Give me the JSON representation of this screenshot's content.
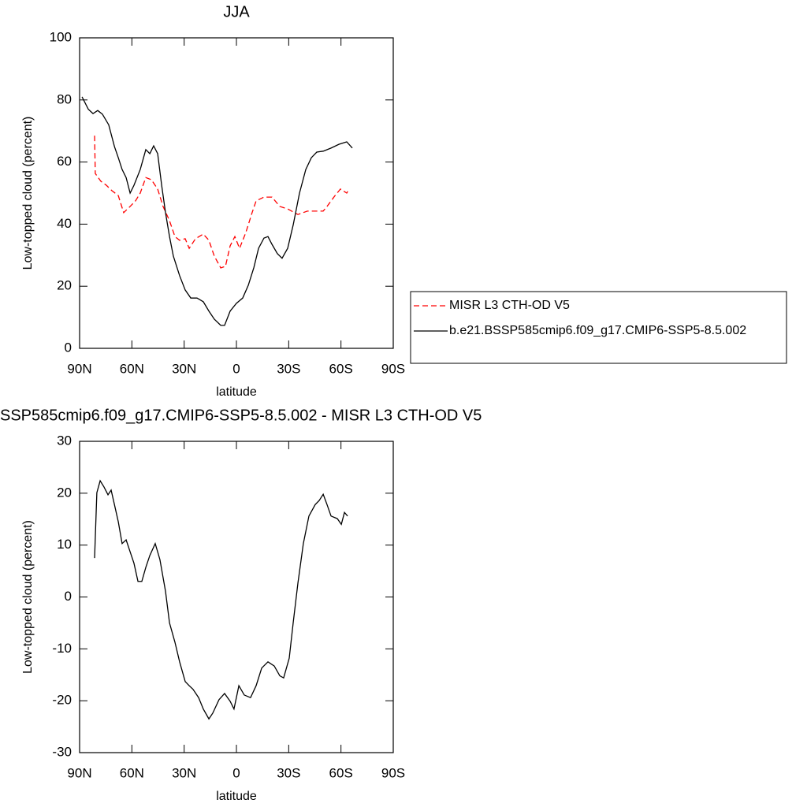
{
  "chart_data": [
    {
      "type": "line",
      "title": "JJA",
      "xlabel": "latitude",
      "ylabel": "Low-topped cloud (percent)",
      "xlim": [
        90,
        -90
      ],
      "xticks": [
        {
          "value": 90,
          "label": "90N"
        },
        {
          "value": 60,
          "label": "60N"
        },
        {
          "value": 30,
          "label": "30N"
        },
        0,
        {
          "value": -30,
          "label": "30S"
        },
        {
          "value": -60,
          "label": "60S"
        },
        {
          "value": -90,
          "label": "90S"
        }
      ],
      "ylim": [
        0,
        100
      ],
      "yticks": [
        0,
        20,
        40,
        60,
        80,
        100
      ],
      "legend": "right",
      "series": [
        {
          "name": "MISR L3 CTH-OD V5",
          "color": "#ff0000",
          "dash": true,
          "x": [
            81.4,
            81,
            77.8,
            74.6,
            71.5,
            67.8,
            64.7,
            61,
            57.9,
            55.2,
            52,
            48.8,
            45.2,
            42.1,
            38.4,
            35.3,
            32.6,
            29.4,
            27.1,
            23.5,
            19,
            15.8,
            12.7,
            9,
            6.3,
            3.6,
            0.9,
            -1.8,
            -5.4,
            -9,
            -11.3,
            -15.8,
            -20.4,
            -24.9,
            -29.4,
            -35.3,
            -40.7,
            -45.2,
            -49.8,
            -52,
            -56.6,
            -59.7,
            -63.3,
            -64.7
          ],
          "values": [
            68.5,
            56.3,
            53.8,
            52.5,
            50.8,
            49.2,
            43.7,
            45.7,
            47.5,
            50,
            55,
            54.3,
            51.3,
            45.7,
            41.1,
            36,
            34.8,
            35.3,
            32.2,
            35.3,
            36.8,
            34.8,
            29.7,
            25.9,
            26.4,
            33,
            36,
            32.2,
            37.3,
            43.7,
            47.5,
            48.7,
            48.7,
            45.7,
            44.9,
            43.1,
            44.2,
            44.2,
            44.2,
            45.7,
            49.2,
            51.3,
            50,
            51.3
          ]
        },
        {
          "name": "b.e21.BSSP585cmip6.f09_g17.CMIP6-SSP5-8.5.002",
          "color": "#000000",
          "dash": false,
          "x": [
            88.6,
            85,
            82.3,
            79.6,
            76.9,
            73.3,
            70,
            67.8,
            65.6,
            63.3,
            61,
            58.8,
            55.2,
            52,
            49.7,
            47.5,
            45.2,
            42.9,
            40.7,
            38.4,
            36.2,
            32.6,
            29.4,
            26.2,
            22.6,
            19,
            15.8,
            12.7,
            9,
            6.8,
            3.6,
            0,
            -3.6,
            -6.8,
            -10,
            -12.7,
            -15.8,
            -18.1,
            -20.4,
            -23.5,
            -26.2,
            -29.4,
            -32.6,
            -36.2,
            -39.8,
            -43,
            -46.1,
            -49.8,
            -54.3,
            -58.8,
            -63.3,
            -66.5
          ],
          "values": [
            81,
            77,
            75.6,
            76.6,
            75.4,
            72,
            65,
            61.4,
            57.6,
            55,
            50,
            52.5,
            57.6,
            64,
            62.7,
            65.2,
            62.7,
            52.5,
            43.7,
            36,
            29.7,
            23.4,
            18.8,
            16.2,
            16.2,
            15,
            12,
            9.4,
            7.4,
            7.4,
            12,
            14.5,
            16.2,
            20.3,
            26,
            32.2,
            35.5,
            36,
            33.5,
            30.5,
            29,
            32.2,
            39.8,
            50,
            57.6,
            61.4,
            63.2,
            63.5,
            64.5,
            65.7,
            66.5,
            64.5
          ]
        }
      ]
    },
    {
      "type": "line",
      "title": "SSP585cmip6.f09_g17.CMIP6-SSP5-8.5.002 - MISR L3 CTH-OD V5",
      "xlabel": "latitude",
      "ylabel": "Low-topped cloud (percent)",
      "xlim": [
        90,
        -90
      ],
      "xticks": [
        {
          "value": 90,
          "label": "90N"
        },
        {
          "value": 60,
          "label": "60N"
        },
        {
          "value": 30,
          "label": "30N"
        },
        0,
        {
          "value": -30,
          "label": "30S"
        },
        {
          "value": -60,
          "label": "60S"
        },
        {
          "value": -90,
          "label": "90S"
        }
      ],
      "ylim": [
        -30,
        30
      ],
      "yticks": [
        -30,
        -20,
        -10,
        0,
        10,
        20,
        30
      ],
      "series": [
        {
          "color": "#000000",
          "dash": false,
          "x": [
            81.4,
            80.1,
            78.2,
            76,
            73.7,
            71.9,
            70,
            67.8,
            65.6,
            63.3,
            61,
            58.8,
            56.5,
            54.3,
            52,
            49.7,
            46.6,
            43.9,
            40.7,
            38.4,
            35.3,
            32.6,
            29.4,
            27.1,
            24.9,
            21.7,
            19,
            15.8,
            13.6,
            10,
            6.8,
            3.6,
            1.4,
            -1.4,
            -4.5,
            -8.1,
            -11.3,
            -14.5,
            -18.1,
            -21.7,
            -24.9,
            -27.1,
            -30.3,
            -32.6,
            -35.3,
            -38.4,
            -41.6,
            -45.2,
            -47.5,
            -49.8,
            -52,
            -54.3,
            -57.9,
            -60.2,
            -62,
            -63.8
          ],
          "values": [
            7.5,
            20.1,
            22.4,
            21.2,
            19.7,
            20.6,
            17.8,
            14.5,
            10.3,
            11,
            8.7,
            6.5,
            3,
            3,
            5.7,
            8,
            10.3,
            7.2,
            1.1,
            -5,
            -8.7,
            -12.5,
            -16.3,
            -17.1,
            -17.8,
            -19.4,
            -21.6,
            -23.5,
            -22.4,
            -19.8,
            -18.6,
            -20.1,
            -21.6,
            -17.1,
            -18.9,
            -19.4,
            -17.1,
            -13.7,
            -12.5,
            -13.3,
            -15.2,
            -15.6,
            -11.8,
            -4.9,
            2.7,
            10.3,
            15.6,
            17.8,
            18.6,
            19.8,
            17.8,
            15.6,
            15.1,
            14,
            16.3,
            15.6
          ]
        }
      ]
    }
  ]
}
